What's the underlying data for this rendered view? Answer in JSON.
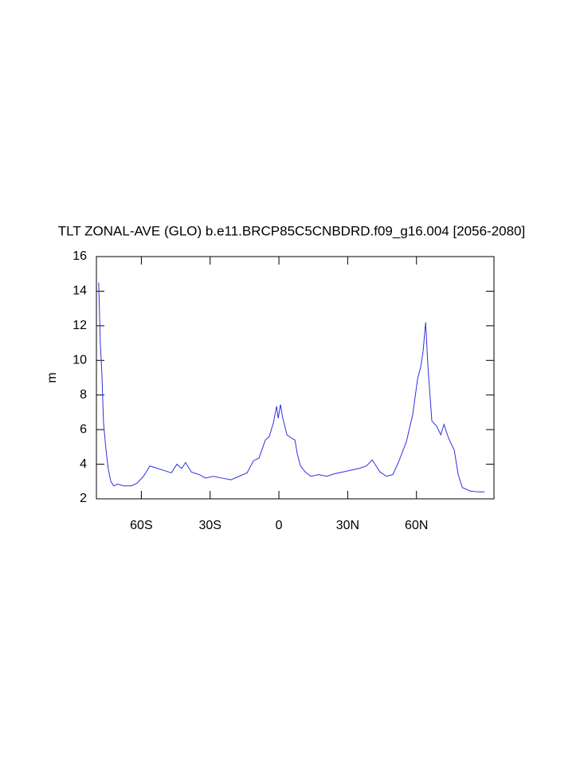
{
  "chart_data": {
    "type": "line",
    "title": "TLT ZONAL-AVE (GLO) b.e11.BRCP85C5CNBDRD.f09_g16.004 [2056-2080]",
    "ylabel": "m",
    "x": [
      -78.6,
      -77.9,
      -77.2,
      -76.5,
      -75.4,
      -74.4,
      -73.3,
      -72.0,
      -70.2,
      -67.8,
      -64.3,
      -61.9,
      -59.1,
      -57.4,
      -56.3,
      -53.9,
      -50.4,
      -46.9,
      -44.5,
      -42.4,
      -40.7,
      -38.2,
      -34.8,
      -32.0,
      -28.5,
      -25.0,
      -20.9,
      -17.4,
      -13.9,
      -11.1,
      -8.7,
      -5.9,
      -4.2,
      -2.4,
      -1.0,
      -0.3,
      0.7,
      1.7,
      3.5,
      5.6,
      7.0,
      8.0,
      9.4,
      11.5,
      13.9,
      17.4,
      20.9,
      24.3,
      27.8,
      31.3,
      34.8,
      38.2,
      40.7,
      42.4,
      44.1,
      46.9,
      49.7,
      52.1,
      55.6,
      58.4,
      60.5,
      61.9,
      62.9,
      64.0,
      65.0,
      66.7,
      68.8,
      70.6,
      72.0,
      74.0,
      76.5,
      78.2,
      80.0,
      83.4,
      86.9,
      89.7
    ],
    "series": [
      {
        "color": "#3030e0",
        "values": [
          14.5,
          11.0,
          9.2,
          6.4,
          4.8,
          3.7,
          3.0,
          2.75,
          2.85,
          2.75,
          2.75,
          2.9,
          3.3,
          3.65,
          3.9,
          3.8,
          3.65,
          3.5,
          4.0,
          3.75,
          4.1,
          3.55,
          3.4,
          3.2,
          3.3,
          3.2,
          3.1,
          3.3,
          3.5,
          4.2,
          4.35,
          5.4,
          5.6,
          6.4,
          7.35,
          6.65,
          7.45,
          6.65,
          5.7,
          5.5,
          5.4,
          4.6,
          3.9,
          3.55,
          3.3,
          3.4,
          3.3,
          3.45,
          3.55,
          3.65,
          3.75,
          3.9,
          4.25,
          3.9,
          3.55,
          3.3,
          3.4,
          4.1,
          5.3,
          6.9,
          8.95,
          9.65,
          10.55,
          12.2,
          9.65,
          6.5,
          6.2,
          5.7,
          6.3,
          5.5,
          4.8,
          3.4,
          2.65,
          2.45,
          2.4,
          2.4
        ]
      }
    ],
    "xlim": [
      -79.6,
      93.8
    ],
    "xticks": [
      {
        "value": -60,
        "label": "60S"
      },
      {
        "value": -30,
        "label": "30S"
      },
      0,
      {
        "value": 30,
        "label": "30N"
      },
      {
        "value": 60,
        "label": "60N"
      }
    ],
    "ylim": [
      2,
      16
    ],
    "yticks": [
      2,
      4,
      6,
      8,
      10,
      12,
      14,
      16
    ]
  }
}
